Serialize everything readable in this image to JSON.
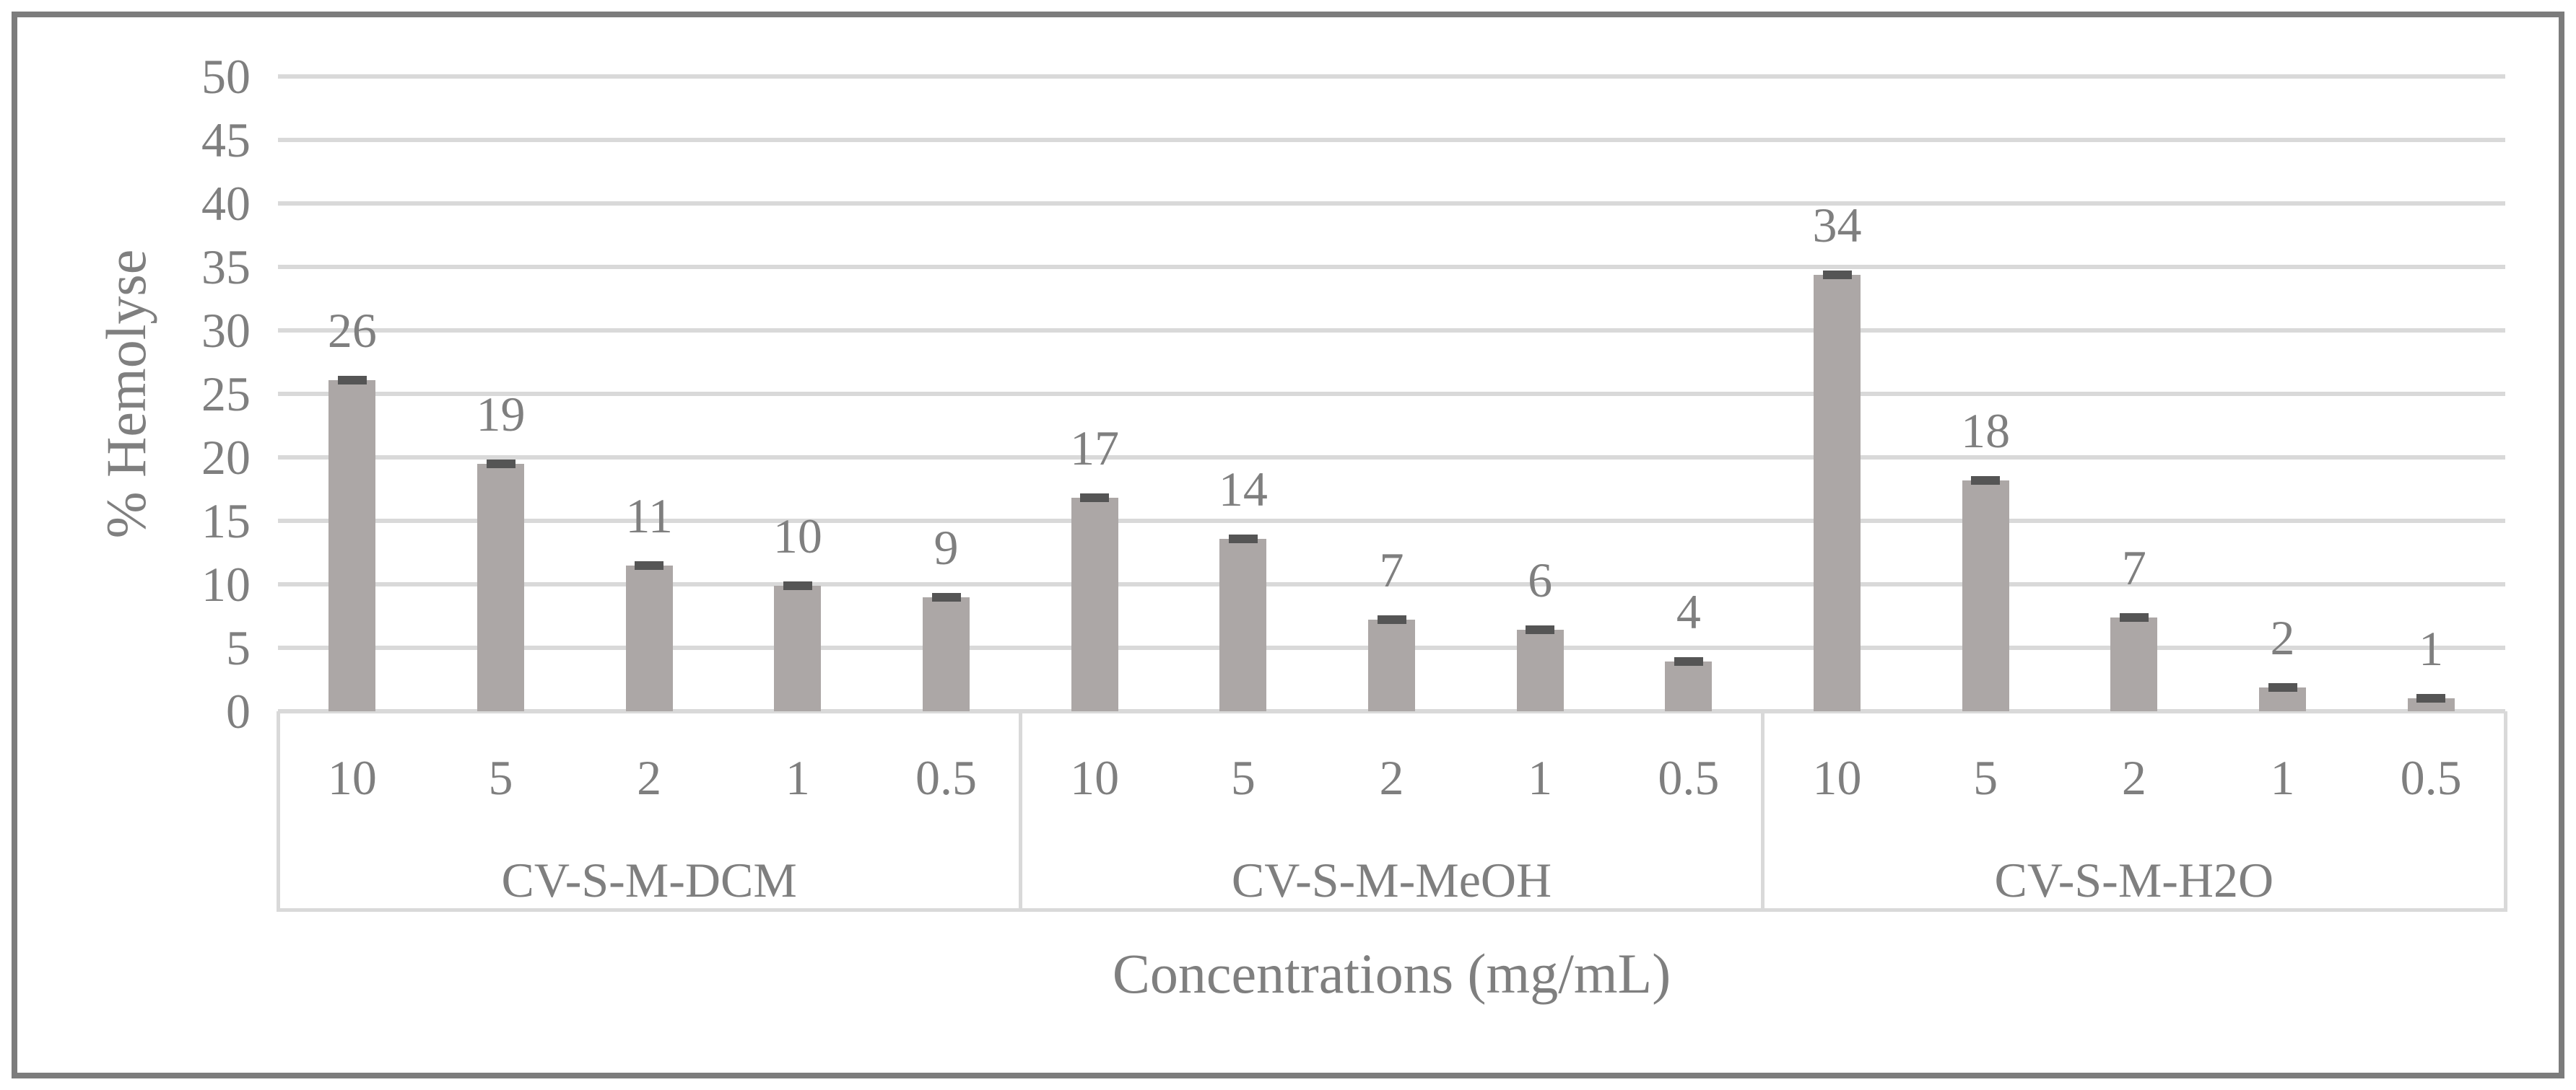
{
  "figure": {
    "background_color": "#ffffff",
    "border_color": "#7c7c7c",
    "text_color": "#7f7f7f"
  },
  "chart_data": {
    "type": "bar",
    "title": "",
    "xlabel": "Concentrations (mg/mL)",
    "ylabel": "% Hemolyse",
    "ylim": [
      0,
      50
    ],
    "yticks": [
      0,
      5,
      10,
      15,
      20,
      25,
      30,
      35,
      40,
      45,
      50
    ],
    "grid": "horizontal",
    "legend": "none",
    "categories": [
      "10",
      "5",
      "2",
      "1",
      "0.5"
    ],
    "groups": [
      {
        "name": "CV-S-M-DCM",
        "values": [
          26,
          19,
          11,
          10,
          9
        ],
        "bar_heights": [
          26.1,
          19.5,
          11.5,
          9.9,
          9.0
        ]
      },
      {
        "name": "CV-S-M-MeOH",
        "values": [
          17,
          14,
          7,
          6,
          4
        ],
        "bar_heights": [
          16.8,
          13.6,
          7.2,
          6.4,
          3.9
        ]
      },
      {
        "name": "CV-S-M-H2O",
        "values": [
          34,
          18,
          7,
          2,
          1
        ],
        "bar_heights": [
          34.4,
          18.2,
          7.4,
          1.9,
          1.0
        ]
      }
    ],
    "error_bars": {
      "visible": true,
      "approx_half_width": 0.4
    },
    "colors": {
      "bar": "#aca7a6",
      "error_cap": "#555555",
      "gridline": "#d9d9d9",
      "axis_box": "#d9d9d9",
      "text": "#7f7f7f"
    }
  }
}
